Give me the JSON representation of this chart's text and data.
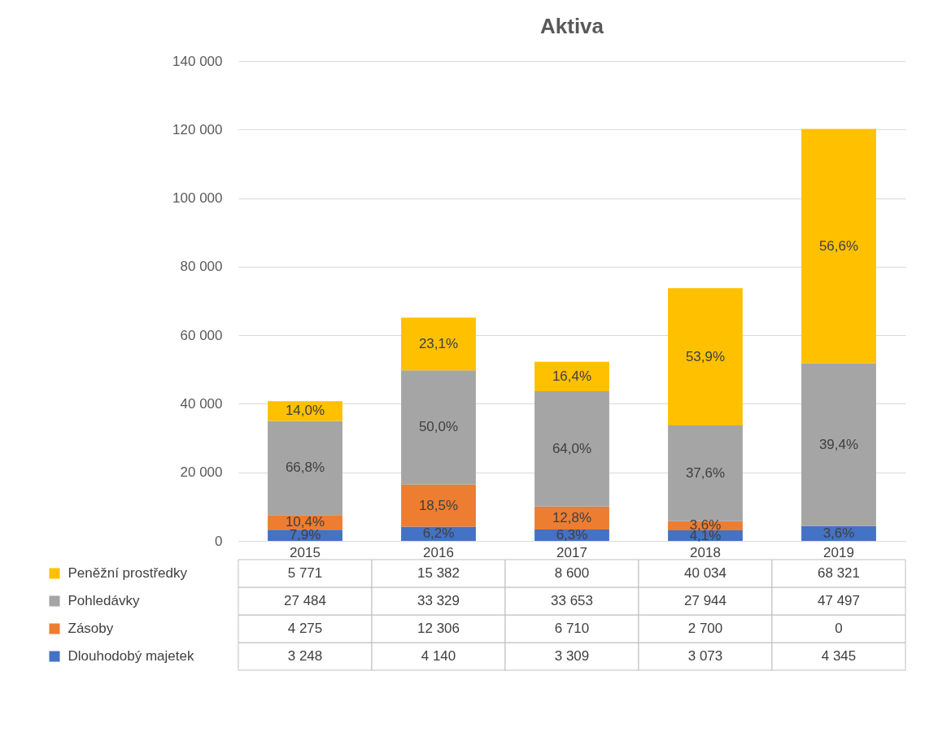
{
  "chart_data": {
    "type": "bar",
    "title": "Aktiva",
    "stacked": true,
    "legend": "bottom",
    "grid": "y",
    "categories": [
      "2015",
      "2016",
      "2017",
      "2018",
      "2019"
    ],
    "ylim": [
      0,
      140000
    ],
    "yticks": [
      0,
      {
        "value": 20000,
        "label": "20 000"
      },
      {
        "value": 40000,
        "label": "40 000"
      },
      {
        "value": 60000,
        "label": "60 000"
      },
      {
        "value": 80000,
        "label": "80 000"
      },
      {
        "value": 100000,
        "label": "100 000"
      },
      {
        "value": 120000,
        "label": "120 000"
      },
      {
        "value": 140000,
        "label": "140 000"
      }
    ],
    "series": [
      {
        "name": "Dlouhodobý majetek",
        "color": "#4472c4",
        "values": [
          3248,
          4140,
          3309,
          3073,
          4345
        ],
        "value_labels": [
          "3 248",
          "4 140",
          "3 309",
          "3 073",
          "4 345"
        ]
      },
      {
        "name": "Zásoby",
        "color": "#ed7d31",
        "values": [
          4275,
          12306,
          6710,
          2700,
          0
        ],
        "value_labels": [
          "4 275",
          "12 306",
          "6 710",
          "2 700",
          "0"
        ]
      },
      {
        "name": "Pohledávky",
        "color": "#a5a5a5",
        "values": [
          27484,
          33329,
          33653,
          27944,
          47497
        ],
        "value_labels": [
          "27 484",
          "33 329",
          "33 653",
          "27 944",
          "47 497"
        ]
      },
      {
        "name": "Peněžní prostředky",
        "color": "#ffc000",
        "values": [
          5771,
          15382,
          8600,
          40034,
          68321
        ],
        "value_labels": [
          "5 771",
          "15 382",
          "8 600",
          "40 034",
          "68 321"
        ]
      }
    ],
    "annotations": [
      "7,9%",
      "10,4%",
      "66,8%",
      "14,0%",
      "6,2%",
      "18,5%",
      "50,0%",
      "23,1%",
      "6,3%",
      "12,8%",
      "64,0%",
      "16,4%",
      "4,1%",
      "3,6%",
      "37,6%",
      "53,9%",
      "3,6%",
      "39,4%",
      "56,6%"
    ]
  }
}
